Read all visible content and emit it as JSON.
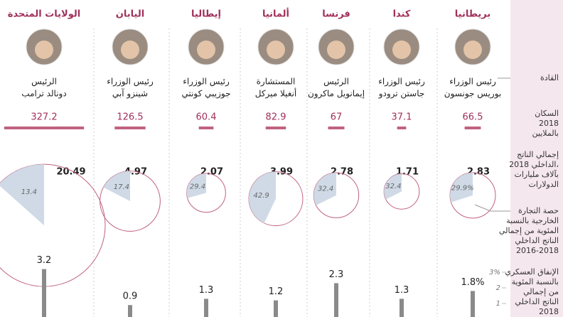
{
  "countries": [
    {
      "name": "بريطانيا",
      "leader_title": "رئيس الوزراء",
      "leader_name": "بوريس جونسون",
      "population": 66.5,
      "gdp": 2.83,
      "trade": 29.9,
      "trade_label": "29.9%",
      "military": 1.8,
      "military_label": "1.8%"
    },
    {
      "name": "كندا",
      "leader_title": "رئيس الوزراء",
      "leader_name": "جاستن ترودو",
      "population": 37.1,
      "gdp": 1.71,
      "trade": 32.4,
      "military": 1.3
    },
    {
      "name": "فرنسا",
      "leader_title": "الرئيس",
      "leader_name": "إيمانويل ماكرون",
      "population": 67,
      "gdp": 2.78,
      "trade": 32.4,
      "military": 2.3
    },
    {
      "name": "ألمانيا",
      "leader_title": "المستشارة",
      "leader_name": "أنغيلا ميركل",
      "population": 82.9,
      "gdp": 3.99,
      "trade": 42.9,
      "military": 1.2
    },
    {
      "name": "إيطاليا",
      "leader_title": "رئيس الوزراء",
      "leader_name": "جوزيبي كونتي",
      "population": 60.4,
      "gdp": 2.07,
      "trade": 29.4,
      "military": 1.3
    },
    {
      "name": "اليابان",
      "leader_title": "رئيس الوزراء",
      "leader_name": "شينزو آبي",
      "population": 126.5,
      "gdp": 4.97,
      "trade": 17.4,
      "military": 0.9
    },
    {
      "name": "الولايات المتحدة",
      "leader_title": "الرئيس",
      "leader_name": "دونالد ترامب",
      "population": 327.2,
      "gdp": 20.49,
      "trade": 13.4,
      "military": 3.2
    }
  ],
  "row_labels": {
    "leaders": [
      "القادة"
    ],
    "population": [
      "السكان",
      "2018",
      "بالملايين"
    ],
    "gdp": [
      "إجمالي الناتج",
      "الداخلي 2018،",
      "بآلاف مليارات",
      "الدولارات"
    ],
    "trade": [
      "حصة التجارة",
      "الخارجية بالنسبة",
      "المئوية من إجمالي",
      "الناتج الداخلي",
      "2016-2018"
    ],
    "military": [
      "الإنفاق العسكري",
      "بالنسبة المئوية",
      "من إجمالي",
      "الناتج الداخلي",
      "2018"
    ]
  },
  "military_ylim": [
    0,
    3
  ],
  "military_yticks": [
    {
      "value": 3,
      "label": "3%"
    },
    2,
    1
  ]
}
